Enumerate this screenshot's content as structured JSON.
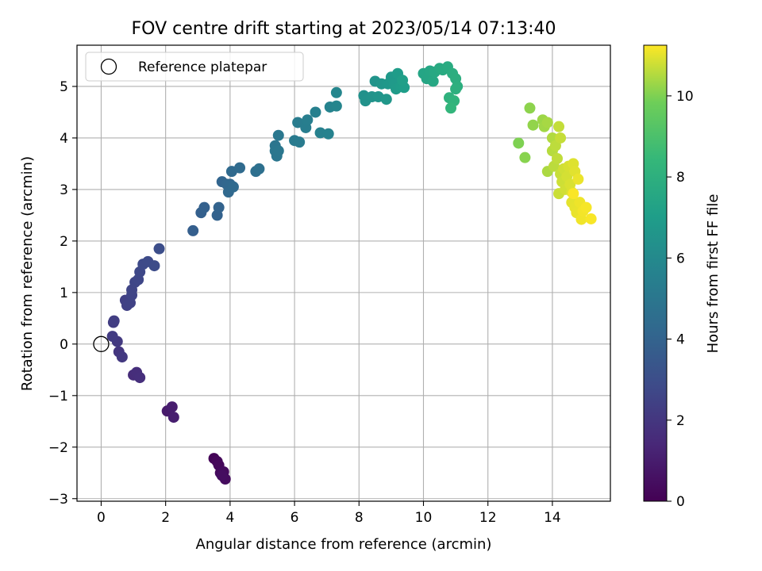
{
  "chart_data": {
    "type": "scatter",
    "title": "FOV centre drift starting at 2023/05/14 07:13:40",
    "xlabel": "Angular distance from reference (arcmin)",
    "ylabel": "Rotation from reference (arcmin)",
    "xlim": [
      -0.75,
      15.8
    ],
    "ylim": [
      -3.05,
      5.8
    ],
    "xticks": [
      0,
      2,
      4,
      6,
      8,
      10,
      12,
      14
    ],
    "yticks": [
      -3,
      -2,
      -1,
      0,
      1,
      2,
      3,
      4,
      5
    ],
    "xtick_labels": [
      "0",
      "2",
      "4",
      "6",
      "8",
      "10",
      "12",
      "14"
    ],
    "ytick_labels": [
      "−3",
      "−2",
      "−1",
      "0",
      "1",
      "2",
      "3",
      "4",
      "5"
    ],
    "grid": true,
    "legend": {
      "position": "top-left",
      "entries": [
        "Reference platepar"
      ]
    },
    "reference_point": {
      "x": 0,
      "y": 0,
      "label": "Reference platepar"
    },
    "colorbar": {
      "label": "Hours from first FF file",
      "range": [
        0,
        11.25
      ],
      "ticks": [
        0,
        2,
        4,
        6,
        8,
        10
      ],
      "tick_labels": [
        "0",
        "2",
        "4",
        "6",
        "8",
        "10"
      ],
      "colormap": "viridis"
    },
    "points": [
      {
        "x": 3.5,
        "y": -2.22,
        "c": 0.1
      },
      {
        "x": 3.6,
        "y": -2.28,
        "c": 0.2
      },
      {
        "x": 3.65,
        "y": -2.35,
        "c": 0.25
      },
      {
        "x": 3.7,
        "y": -2.5,
        "c": 0.3
      },
      {
        "x": 3.8,
        "y": -2.48,
        "c": 0.35
      },
      {
        "x": 3.85,
        "y": -2.62,
        "c": 0.4
      },
      {
        "x": 3.75,
        "y": -2.55,
        "c": 0.45
      },
      {
        "x": 2.05,
        "y": -1.3,
        "c": 0.9
      },
      {
        "x": 2.2,
        "y": -1.22,
        "c": 1.0
      },
      {
        "x": 2.25,
        "y": -1.42,
        "c": 1.05
      },
      {
        "x": 1.0,
        "y": -0.6,
        "c": 1.6
      },
      {
        "x": 1.1,
        "y": -0.55,
        "c": 1.65
      },
      {
        "x": 1.2,
        "y": -0.65,
        "c": 1.7
      },
      {
        "x": 0.55,
        "y": -0.15,
        "c": 2.0
      },
      {
        "x": 0.65,
        "y": -0.25,
        "c": 2.05
      },
      {
        "x": 0.5,
        "y": 0.05,
        "c": 2.1
      },
      {
        "x": 0.35,
        "y": 0.15,
        "c": 2.2
      },
      {
        "x": 0.38,
        "y": 0.42,
        "c": 2.25
      },
      {
        "x": 0.4,
        "y": 0.45,
        "c": 2.3
      },
      {
        "x": 0.75,
        "y": 0.85,
        "c": 2.4
      },
      {
        "x": 0.8,
        "y": 0.75,
        "c": 2.45
      },
      {
        "x": 0.9,
        "y": 0.8,
        "c": 2.5
      },
      {
        "x": 0.95,
        "y": 0.95,
        "c": 2.55
      },
      {
        "x": 0.95,
        "y": 1.05,
        "c": 2.6
      },
      {
        "x": 1.05,
        "y": 1.2,
        "c": 2.65
      },
      {
        "x": 1.15,
        "y": 1.25,
        "c": 2.7
      },
      {
        "x": 1.2,
        "y": 1.4,
        "c": 2.75
      },
      {
        "x": 1.3,
        "y": 1.55,
        "c": 2.8
      },
      {
        "x": 1.45,
        "y": 1.6,
        "c": 2.85
      },
      {
        "x": 1.65,
        "y": 1.52,
        "c": 2.9
      },
      {
        "x": 1.8,
        "y": 1.85,
        "c": 3.0
      },
      {
        "x": 2.85,
        "y": 2.2,
        "c": 3.8
      },
      {
        "x": 3.1,
        "y": 2.55,
        "c": 3.85
      },
      {
        "x": 3.2,
        "y": 2.65,
        "c": 3.9
      },
      {
        "x": 3.6,
        "y": 2.5,
        "c": 3.95
      },
      {
        "x": 3.65,
        "y": 2.65,
        "c": 4.0
      },
      {
        "x": 3.75,
        "y": 3.15,
        "c": 4.1
      },
      {
        "x": 3.9,
        "y": 3.1,
        "c": 4.15
      },
      {
        "x": 4.0,
        "y": 3.1,
        "c": 4.2
      },
      {
        "x": 3.95,
        "y": 2.95,
        "c": 4.25
      },
      {
        "x": 4.1,
        "y": 3.05,
        "c": 4.3
      },
      {
        "x": 4.05,
        "y": 3.35,
        "c": 4.35
      },
      {
        "x": 4.3,
        "y": 3.42,
        "c": 4.4
      },
      {
        "x": 4.8,
        "y": 3.35,
        "c": 4.6
      },
      {
        "x": 4.9,
        "y": 3.4,
        "c": 4.65
      },
      {
        "x": 5.4,
        "y": 3.85,
        "c": 4.9
      },
      {
        "x": 5.4,
        "y": 3.75,
        "c": 4.95
      },
      {
        "x": 5.45,
        "y": 3.65,
        "c": 5.0
      },
      {
        "x": 5.5,
        "y": 3.75,
        "c": 5.02
      },
      {
        "x": 5.5,
        "y": 4.05,
        "c": 5.05
      },
      {
        "x": 6.0,
        "y": 3.95,
        "c": 5.2
      },
      {
        "x": 6.15,
        "y": 3.92,
        "c": 5.25
      },
      {
        "x": 6.1,
        "y": 4.3,
        "c": 5.3
      },
      {
        "x": 6.35,
        "y": 4.2,
        "c": 5.35
      },
      {
        "x": 6.4,
        "y": 4.35,
        "c": 5.4
      },
      {
        "x": 6.65,
        "y": 4.5,
        "c": 5.5
      },
      {
        "x": 6.8,
        "y": 4.1,
        "c": 5.55
      },
      {
        "x": 7.05,
        "y": 4.08,
        "c": 5.6
      },
      {
        "x": 7.1,
        "y": 4.6,
        "c": 5.7
      },
      {
        "x": 7.3,
        "y": 4.62,
        "c": 5.8
      },
      {
        "x": 7.3,
        "y": 4.88,
        "c": 5.85
      },
      {
        "x": 8.15,
        "y": 4.82,
        "c": 6.4
      },
      {
        "x": 8.2,
        "y": 4.72,
        "c": 6.45
      },
      {
        "x": 8.4,
        "y": 4.8,
        "c": 6.5
      },
      {
        "x": 8.5,
        "y": 5.1,
        "c": 6.55
      },
      {
        "x": 8.6,
        "y": 4.8,
        "c": 6.6
      },
      {
        "x": 8.7,
        "y": 5.05,
        "c": 6.65
      },
      {
        "x": 8.85,
        "y": 4.75,
        "c": 6.7
      },
      {
        "x": 8.9,
        "y": 5.05,
        "c": 6.75
      },
      {
        "x": 9.0,
        "y": 5.18,
        "c": 6.8
      },
      {
        "x": 9.1,
        "y": 5.05,
        "c": 6.85
      },
      {
        "x": 9.15,
        "y": 4.95,
        "c": 6.9
      },
      {
        "x": 9.2,
        "y": 5.25,
        "c": 6.95
      },
      {
        "x": 9.3,
        "y": 5.0,
        "c": 7.0
      },
      {
        "x": 9.4,
        "y": 4.98,
        "c": 7.05
      },
      {
        "x": 9.35,
        "y": 5.12,
        "c": 7.1
      },
      {
        "x": 10.0,
        "y": 5.25,
        "c": 7.4
      },
      {
        "x": 10.1,
        "y": 5.15,
        "c": 7.45
      },
      {
        "x": 10.2,
        "y": 5.3,
        "c": 7.5
      },
      {
        "x": 10.3,
        "y": 5.1,
        "c": 7.55
      },
      {
        "x": 10.35,
        "y": 5.28,
        "c": 7.6
      },
      {
        "x": 10.5,
        "y": 5.35,
        "c": 7.65
      },
      {
        "x": 10.6,
        "y": 5.32,
        "c": 7.7
      },
      {
        "x": 10.75,
        "y": 5.38,
        "c": 7.75
      },
      {
        "x": 10.9,
        "y": 5.25,
        "c": 7.85
      },
      {
        "x": 11.0,
        "y": 5.15,
        "c": 7.9
      },
      {
        "x": 11.05,
        "y": 5.0,
        "c": 7.95
      },
      {
        "x": 11.0,
        "y": 4.95,
        "c": 8.0
      },
      {
        "x": 10.8,
        "y": 4.78,
        "c": 8.1
      },
      {
        "x": 10.95,
        "y": 4.72,
        "c": 8.2
      },
      {
        "x": 10.85,
        "y": 4.58,
        "c": 8.3
      },
      {
        "x": 12.95,
        "y": 3.9,
        "c": 10.0
      },
      {
        "x": 13.15,
        "y": 3.62,
        "c": 10.1
      },
      {
        "x": 13.3,
        "y": 4.58,
        "c": 10.15
      },
      {
        "x": 13.4,
        "y": 4.25,
        "c": 10.2
      },
      {
        "x": 13.7,
        "y": 4.35,
        "c": 10.3
      },
      {
        "x": 13.75,
        "y": 4.22,
        "c": 10.35
      },
      {
        "x": 13.85,
        "y": 4.3,
        "c": 10.4
      },
      {
        "x": 13.85,
        "y": 3.35,
        "c": 10.45
      },
      {
        "x": 14.0,
        "y": 4.0,
        "c": 10.5
      },
      {
        "x": 14.0,
        "y": 3.75,
        "c": 10.55
      },
      {
        "x": 14.05,
        "y": 3.45,
        "c": 10.6
      },
      {
        "x": 14.1,
        "y": 3.85,
        "c": 10.62
      },
      {
        "x": 14.15,
        "y": 3.6,
        "c": 10.65
      },
      {
        "x": 14.2,
        "y": 4.22,
        "c": 10.68
      },
      {
        "x": 14.25,
        "y": 4.0,
        "c": 10.7
      },
      {
        "x": 14.25,
        "y": 3.3,
        "c": 10.72
      },
      {
        "x": 14.2,
        "y": 2.92,
        "c": 10.75
      },
      {
        "x": 14.3,
        "y": 3.15,
        "c": 10.78
      },
      {
        "x": 14.35,
        "y": 3.4,
        "c": 10.8
      },
      {
        "x": 14.4,
        "y": 3.0,
        "c": 10.82
      },
      {
        "x": 14.45,
        "y": 3.25,
        "c": 10.85
      },
      {
        "x": 14.5,
        "y": 3.45,
        "c": 10.88
      },
      {
        "x": 14.55,
        "y": 3.1,
        "c": 10.9
      },
      {
        "x": 14.6,
        "y": 2.95,
        "c": 10.92
      },
      {
        "x": 14.65,
        "y": 3.5,
        "c": 10.95
      },
      {
        "x": 14.7,
        "y": 3.35,
        "c": 10.97
      },
      {
        "x": 14.6,
        "y": 2.75,
        "c": 11.0
      },
      {
        "x": 14.7,
        "y": 2.65,
        "c": 11.02
      },
      {
        "x": 14.75,
        "y": 2.55,
        "c": 11.05
      },
      {
        "x": 14.8,
        "y": 3.2,
        "c": 11.07
      },
      {
        "x": 14.85,
        "y": 2.75,
        "c": 11.1
      },
      {
        "x": 14.9,
        "y": 2.42,
        "c": 11.12
      },
      {
        "x": 14.95,
        "y": 2.58,
        "c": 11.15
      },
      {
        "x": 15.05,
        "y": 2.65,
        "c": 11.18
      },
      {
        "x": 15.2,
        "y": 2.43,
        "c": 11.2
      },
      {
        "x": 14.65,
        "y": 2.92,
        "c": 11.22
      }
    ]
  }
}
